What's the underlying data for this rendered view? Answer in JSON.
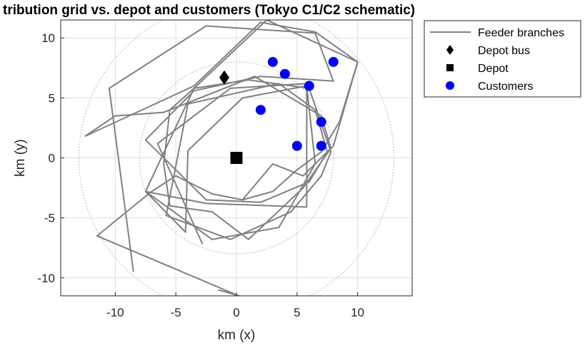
{
  "chart_data": {
    "type": "scatter",
    "title": "tribution grid vs. depot and customers (Tokyo C1/C2 schematic)",
    "xlabel": "km (x)",
    "ylabel": "km (y)",
    "xlim": [
      -14.5,
      14.5
    ],
    "ylim": [
      -11.5,
      11.5
    ],
    "xticks": [
      -10,
      -5,
      0,
      5,
      10
    ],
    "yticks": [
      -10,
      -5,
      0,
      5,
      10
    ],
    "xtick_labels": [
      "-10",
      "-5",
      "0",
      "5",
      "10"
    ],
    "ytick_labels": [
      "-10",
      "-5",
      "0",
      "5",
      "10"
    ],
    "grid": true,
    "legend_position": "outside-top-right",
    "reference_circles": [
      {
        "radius": 13,
        "style": "dotted",
        "color": "#a6a6a6"
      },
      {
        "radius": 8,
        "style": "dotted",
        "color": "#a6a6a6"
      }
    ],
    "series": [
      {
        "name": "Feeder branches",
        "kind": "line",
        "color": "#808080",
        "points": [
          [
            -8.5,
            -9.5
          ],
          [
            -10.5,
            5.8
          ],
          [
            -2.5,
            11.0
          ],
          [
            6.5,
            10.4
          ],
          [
            8.0,
            6.4
          ],
          [
            2.0,
            6.8
          ],
          [
            -3.5,
            5.6
          ],
          [
            -7.5,
            1.5
          ],
          [
            -5.0,
            -1.0
          ],
          [
            -2.5,
            -3.5
          ],
          [
            2.0,
            -3.7
          ],
          [
            6.0,
            -2.0
          ],
          [
            7.5,
            0.5
          ],
          [
            6.5,
            4.0
          ],
          [
            3.5,
            6.2
          ],
          [
            -4.0,
            4.5
          ],
          [
            -5.8,
            -4.8
          ],
          [
            -0.5,
            -6.8
          ],
          [
            4.5,
            -4.5
          ],
          [
            7.0,
            -1.5
          ],
          [
            7.8,
            0.5
          ],
          [
            6.0,
            5.8
          ],
          [
            1.0,
            6.5
          ],
          [
            -3.5,
            5.8
          ],
          [
            -7.5,
            -2.8
          ],
          [
            -2.0,
            -6.8
          ],
          [
            3.5,
            -5.8
          ],
          [
            6.5,
            -0.5
          ],
          [
            5.8,
            6.0
          ],
          [
            0.5,
            5.0
          ],
          [
            -4.0,
            0.6
          ],
          [
            -4.2,
            -6.2
          ],
          [
            -7.5,
            -2.8
          ],
          [
            -2.5,
            -3.8
          ],
          [
            5.8,
            -4.1
          ],
          [
            5.8,
            6.2
          ],
          [
            -0.5,
            5.8
          ],
          [
            -6.5,
            1.2
          ],
          [
            -2.8,
            -7.2
          ]
        ]
      },
      {
        "name": "",
        "kind": "line",
        "color": "#808080",
        "points": [
          [
            -12.5,
            1.8
          ],
          [
            -3.5,
            6.0
          ],
          [
            2.0,
            11.3
          ],
          [
            6.5,
            10.5
          ],
          [
            10.0,
            8.0
          ],
          [
            8.5,
            3.0
          ],
          [
            7.0,
            0.5
          ],
          [
            5.0,
            -1.0
          ],
          [
            3.0,
            -2.8
          ],
          [
            0.5,
            -3.5
          ],
          [
            -2.0,
            -3.0
          ],
          [
            -5.0,
            -1.5
          ],
          [
            -7.0,
            -2.8
          ],
          [
            -11.5,
            -6.5
          ],
          [
            0.2,
            -11.5
          ],
          [
            -1.5,
            -11.0
          ]
        ]
      },
      {
        "name": "",
        "kind": "line",
        "color": "#808080",
        "points": [
          [
            -12.5,
            1.8
          ],
          [
            -10.0,
            3.5
          ],
          [
            -6.0,
            3.8
          ],
          [
            1.5,
            6.8
          ],
          [
            7.0,
            3.5
          ],
          [
            7.8,
            0.8
          ],
          [
            5.5,
            -2.5
          ],
          [
            1.0,
            -6.8
          ],
          [
            -2.0,
            -4.5
          ],
          [
            -5.5,
            -4.0
          ],
          [
            -6.0,
            -0.5
          ],
          [
            -5.5,
            4.0
          ],
          [
            -3.5,
            5.8
          ],
          [
            2.5,
            11.5
          ],
          [
            10.0,
            8.0
          ],
          [
            8.0,
            1.0
          ],
          [
            5.5,
            -1.5
          ],
          [
            3.0,
            -0.5
          ],
          [
            0.5,
            -3.5
          ]
        ]
      },
      {
        "name": "Depot bus",
        "kind": "marker",
        "marker": "diamond",
        "color": "#000000",
        "x": [
          -1.0
        ],
        "y": [
          6.7
        ]
      },
      {
        "name": "Depot",
        "kind": "marker",
        "marker": "square",
        "color": "#000000",
        "x": [
          0.0
        ],
        "y": [
          0.0
        ]
      },
      {
        "name": "Customers",
        "kind": "marker",
        "marker": "circle",
        "color": "#0000ff",
        "x": [
          3,
          8,
          4,
          6,
          2,
          7,
          5,
          7
        ],
        "y": [
          8,
          8,
          7,
          6,
          4,
          3,
          1,
          1
        ]
      }
    ]
  }
}
